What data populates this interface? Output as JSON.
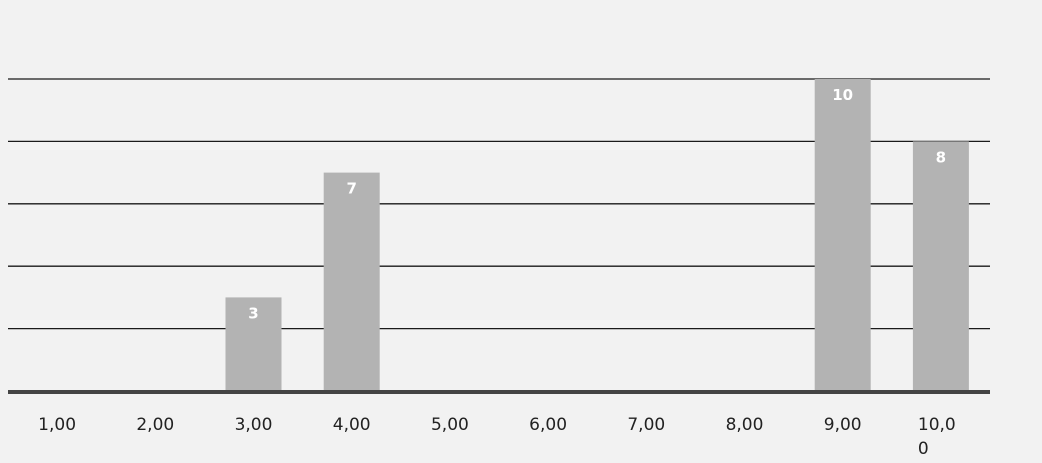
{
  "chart_data": {
    "type": "bar",
    "categories": [
      "1,00",
      "2,00",
      "3,00",
      "4,00",
      "5,00",
      "6,00",
      "7,00",
      "8,00",
      "9,00",
      "10,00"
    ],
    "tick_labels": [
      [
        "1,00"
      ],
      [
        "2,00"
      ],
      [
        "3,00"
      ],
      [
        "4,00"
      ],
      [
        "5,00"
      ],
      [
        "6,00"
      ],
      [
        "7,00"
      ],
      [
        "8,00"
      ],
      [
        "9,00"
      ],
      [
        "10,0",
        "0"
      ]
    ],
    "values": [
      null,
      null,
      3,
      7,
      null,
      null,
      null,
      null,
      10,
      8
    ],
    "data_labels": [
      "",
      "",
      "3",
      "7",
      "",
      "",
      "",
      "",
      "10",
      "8"
    ],
    "ylim": [
      0,
      10
    ],
    "grid": true,
    "colors": {
      "bar": "#b3b3b3",
      "gridline": "#1a1a1a",
      "axis": "#444444",
      "data_label": "#ffffff"
    }
  }
}
